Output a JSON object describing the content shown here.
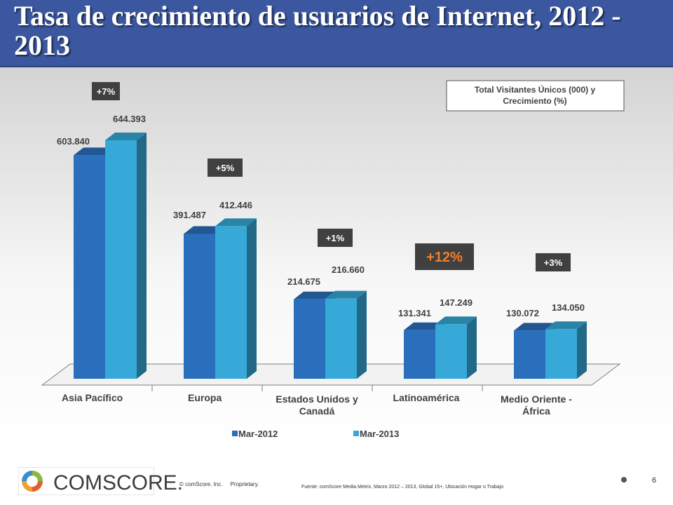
{
  "title": "Tasa de crecimiento de usuarios de Internet, 2012 - 2013",
  "colors": {
    "title_bar": "#3b57a0",
    "series_2012": "#2a6fbc",
    "series_2013": "#36a9d8",
    "growth_box": "#404040",
    "growth_highlight": "#f07f2c"
  },
  "chart_data": {
    "type": "bar",
    "categories": [
      "Asia Pacífico",
      "Europa",
      "Estados Unidos y Canadá",
      "Latinoamérica",
      "Medio Oriente - África"
    ],
    "series": [
      {
        "name": "Mar-2012",
        "values": [
          603840,
          391487,
          214675,
          131341,
          130072
        ],
        "labels": [
          "603.840",
          "391.487",
          "214.675",
          "131.341",
          "130.072"
        ]
      },
      {
        "name": "Mar-2013",
        "values": [
          644393,
          412446,
          216660,
          147249,
          134050
        ],
        "labels": [
          "644.393",
          "412.446",
          "216.660",
          "147.249",
          "134.050"
        ]
      }
    ],
    "growth": [
      "+7%",
      "+5%",
      "+1%",
      "+12%",
      "+3%"
    ],
    "highlight_growth_index": 3,
    "legend_title": "Total Visitantes Únicos (000) y Crecimiento (%)",
    "legend_position": "bottom",
    "ylim": [
      0,
      700000
    ],
    "grid": false,
    "style": "3d-clustered-column"
  },
  "footer": {
    "logo_text": "COMSCORE.",
    "copyright": "© comScore, Inc.     Proprietary.",
    "source": "Fuente: comScore Media Metrix, Marzo 2012 – 2013, Global 15+, Ubicación Hogar o Trabajo",
    "page_number": "6"
  }
}
